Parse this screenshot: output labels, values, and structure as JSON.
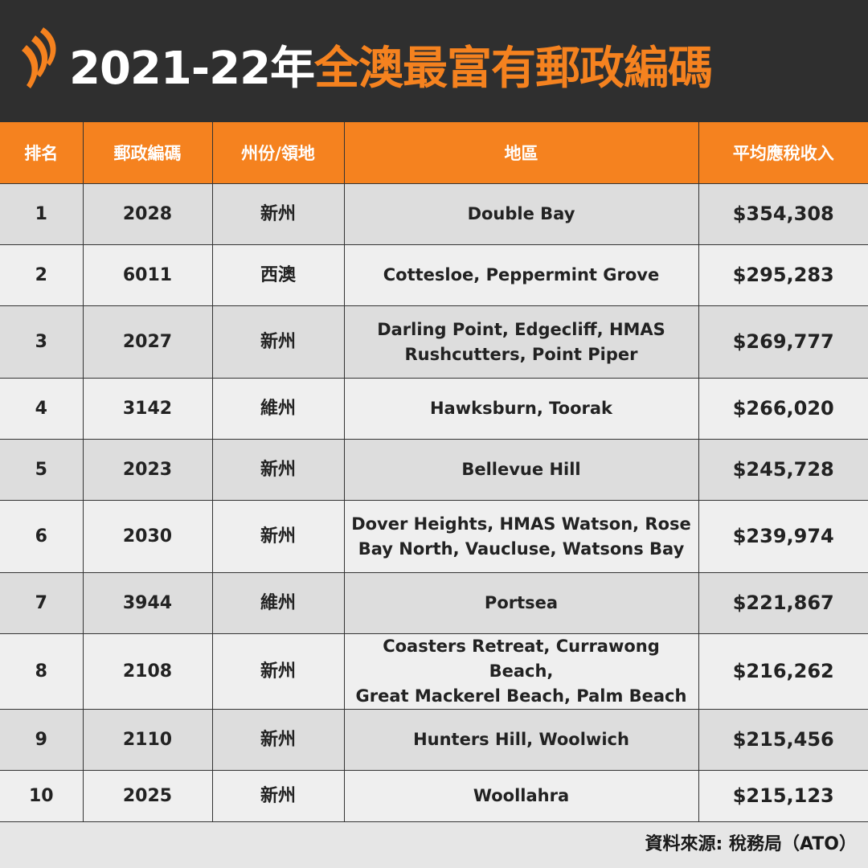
{
  "header": {
    "title_white": "2021-22年",
    "title_orange": "全澳最富有郵政編碼",
    "logo_icon": "sbs-logo-icon",
    "accent_color": "#f5821f",
    "background_color": "#2f2f2f"
  },
  "table": {
    "columns": [
      "排名",
      "郵政編碼",
      "州份/領地",
      "地區",
      "平均應稅收入"
    ],
    "rows": [
      {
        "rank": "1",
        "postcode": "2028",
        "state": "新州",
        "region_lines": [
          "Double Bay"
        ],
        "income": "$354,308"
      },
      {
        "rank": "2",
        "postcode": "6011",
        "state": "西澳",
        "region_lines": [
          "Cottesloe,  Peppermint Grove"
        ],
        "income": "$295,283"
      },
      {
        "rank": "3",
        "postcode": "2027",
        "state": "新州",
        "region_lines": [
          "Darling Point, Edgecliff, HMAS",
          "Rushcutters, Point Piper"
        ],
        "income": "$269,777"
      },
      {
        "rank": "4",
        "postcode": "3142",
        "state": "維州",
        "region_lines": [
          "Hawksburn, Toorak"
        ],
        "income": "$266,020"
      },
      {
        "rank": "5",
        "postcode": "2023",
        "state": "新州",
        "region_lines": [
          "Bellevue Hill"
        ],
        "income": "$245,728"
      },
      {
        "rank": "6",
        "postcode": "2030",
        "state": "新州",
        "region_lines": [
          "Dover Heights, HMAS Watson, Rose",
          "Bay North, Vaucluse, Watsons Bay"
        ],
        "income": "$239,974"
      },
      {
        "rank": "7",
        "postcode": "3944",
        "state": "維州",
        "region_lines": [
          "Portsea"
        ],
        "income": "$221,867"
      },
      {
        "rank": "8",
        "postcode": "2108",
        "state": "新州",
        "region_lines": [
          "Coasters Retreat, Currawong Beach,",
          "Great Mackerel Beach, Palm Beach"
        ],
        "income": "$216,262"
      },
      {
        "rank": "9",
        "postcode": "2110",
        "state": "新州",
        "region_lines": [
          "Hunters Hill, Woolwich"
        ],
        "income": "$215,456"
      },
      {
        "rank": "10",
        "postcode": "2025",
        "state": "新州",
        "region_lines": [
          "Woollahra"
        ],
        "income": "$215,123"
      }
    ]
  },
  "footer": {
    "source": "資料來源: 稅務局（ATO）"
  }
}
